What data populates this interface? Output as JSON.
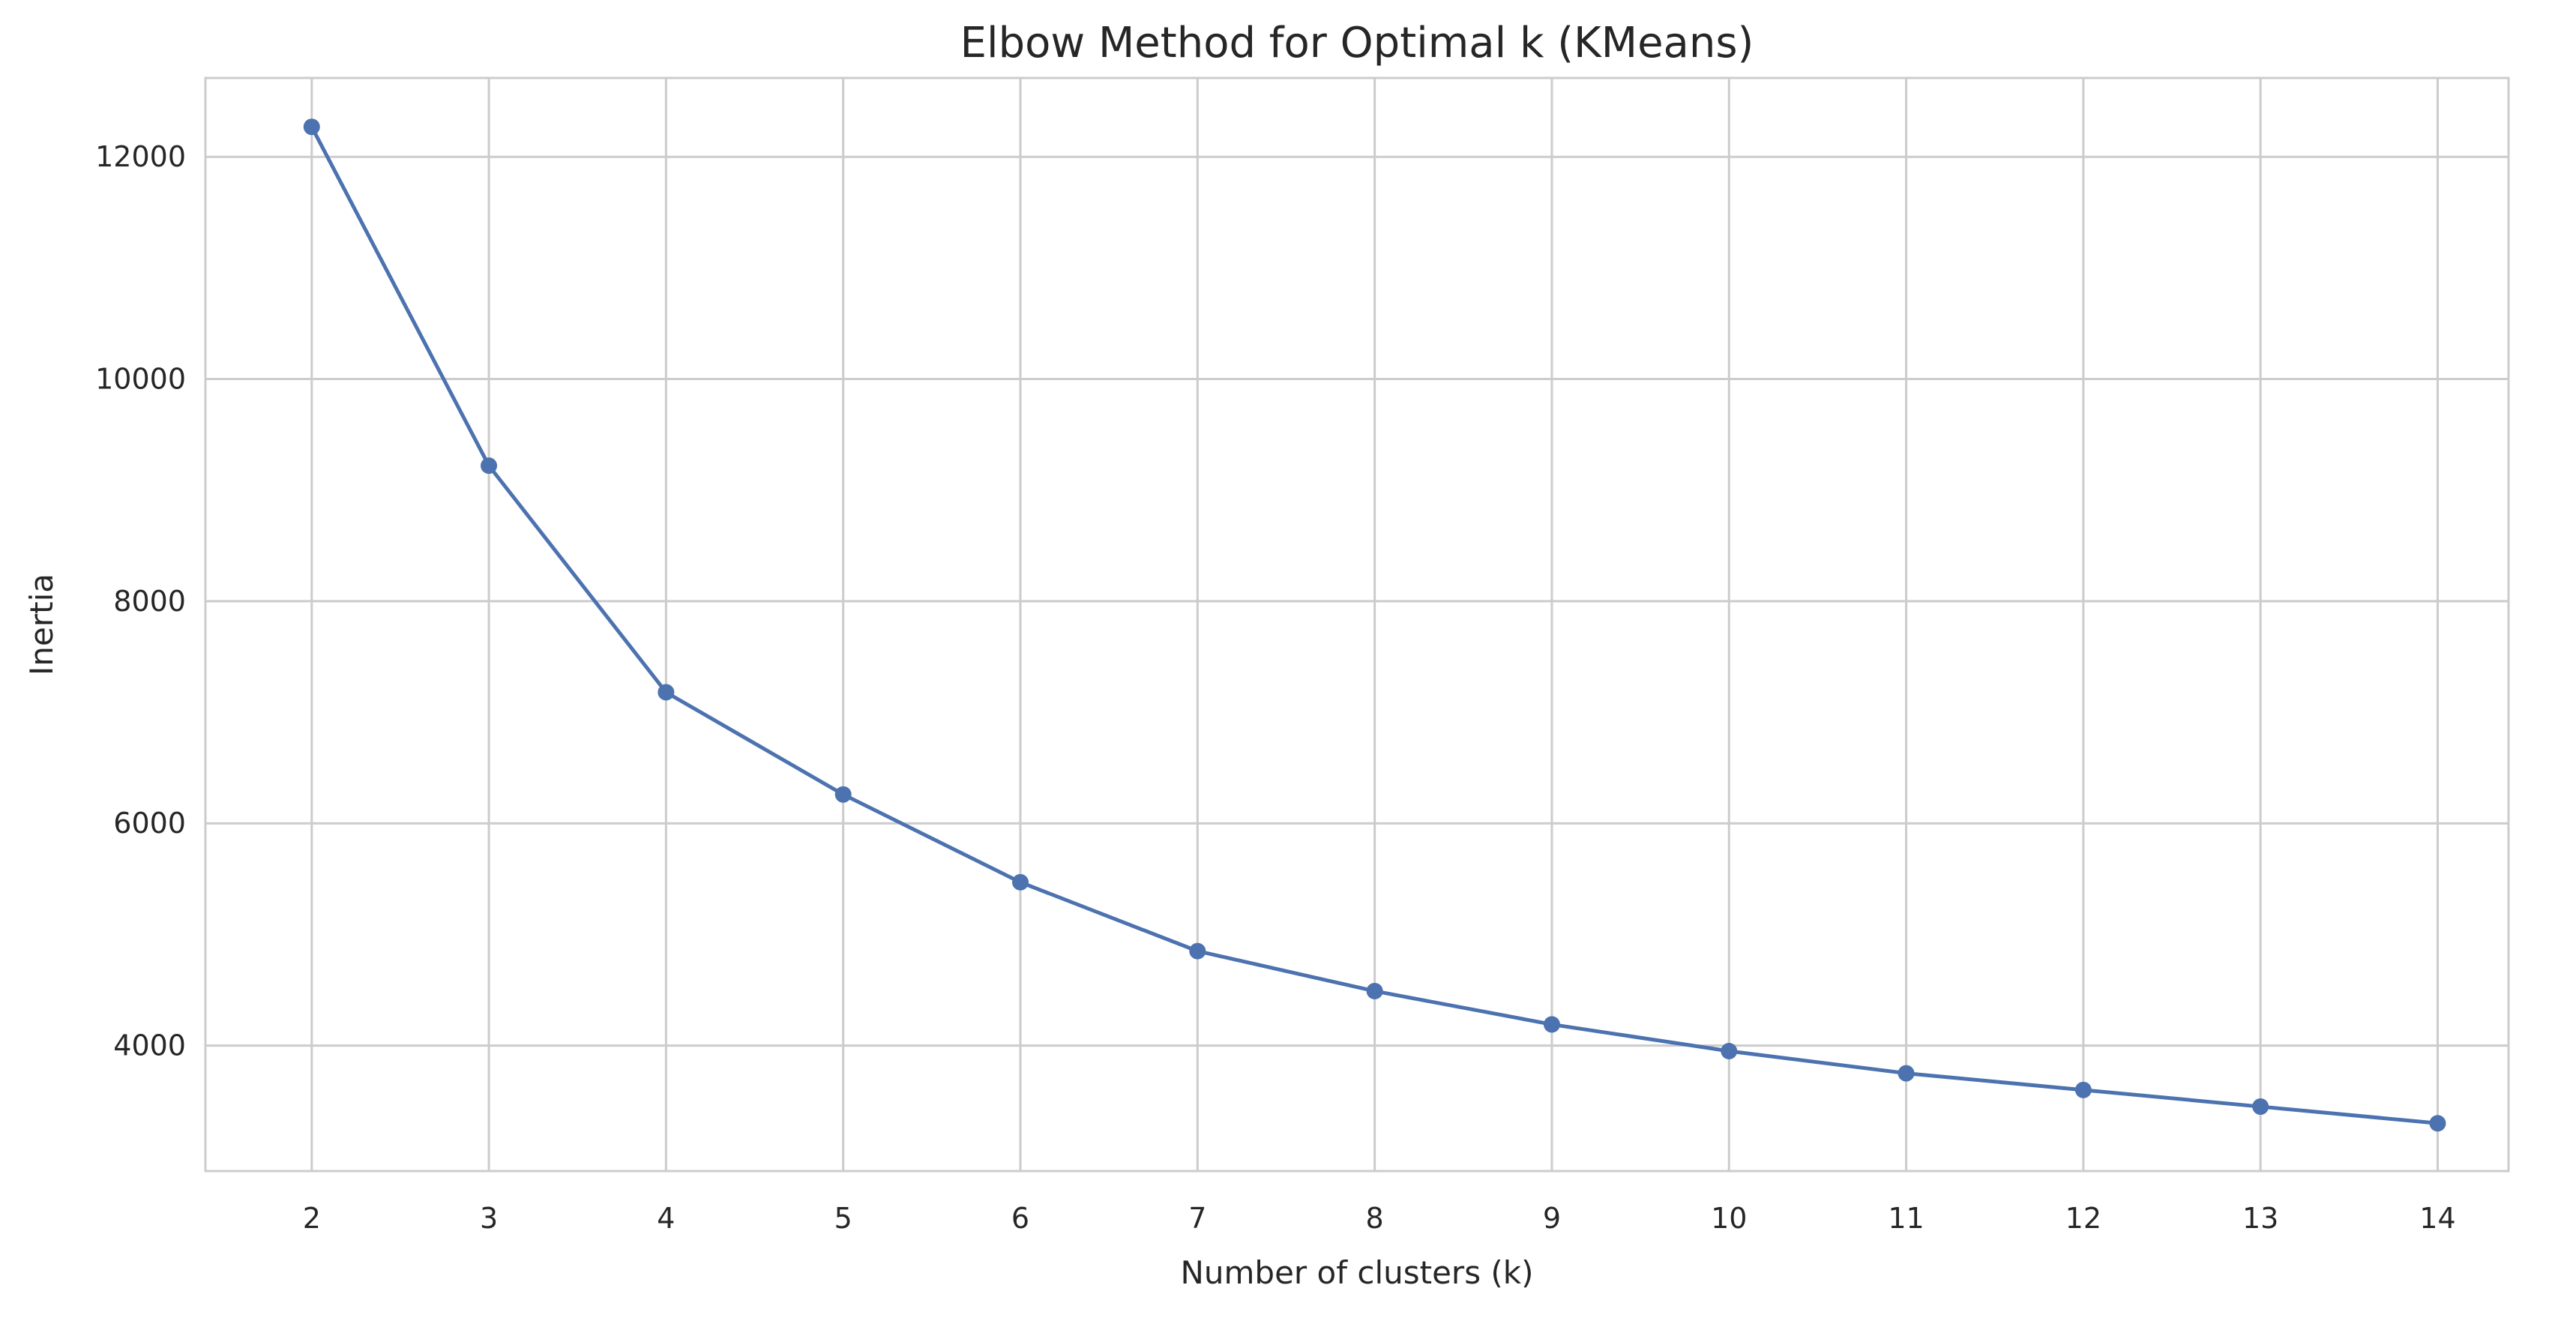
{
  "chart_data": {
    "type": "line",
    "title": "Elbow Method for Optimal k (KMeans)",
    "xlabel": "Number of clusters (k)",
    "ylabel": "Inertia",
    "x": [
      2,
      3,
      4,
      5,
      6,
      7,
      8,
      9,
      10,
      11,
      12,
      13,
      14
    ],
    "x_ticks": [
      "2",
      "3",
      "4",
      "5",
      "6",
      "7",
      "8",
      "9",
      "10",
      "11",
      "12",
      "13",
      "14"
    ],
    "series": [
      {
        "values": [
          12270,
          9220,
          7180,
          6260,
          5470,
          4850,
          4490,
          4190,
          3950,
          3750,
          3600,
          3450,
          3300
        ]
      }
    ],
    "y_ticks": [
      4000,
      6000,
      8000,
      10000,
      12000
    ],
    "y_tick_labels": [
      "4000",
      "6000",
      "8000",
      "10000",
      "12000"
    ],
    "xlim": [
      1.4,
      14.4
    ],
    "ylim": [
      2870,
      12710
    ],
    "grid": true,
    "marker": "circle",
    "colors": {
      "line": "#4c72b0",
      "grid": "#cccccc",
      "spine": "#cccccc",
      "text": "#262626",
      "background": "#ffffff"
    }
  }
}
